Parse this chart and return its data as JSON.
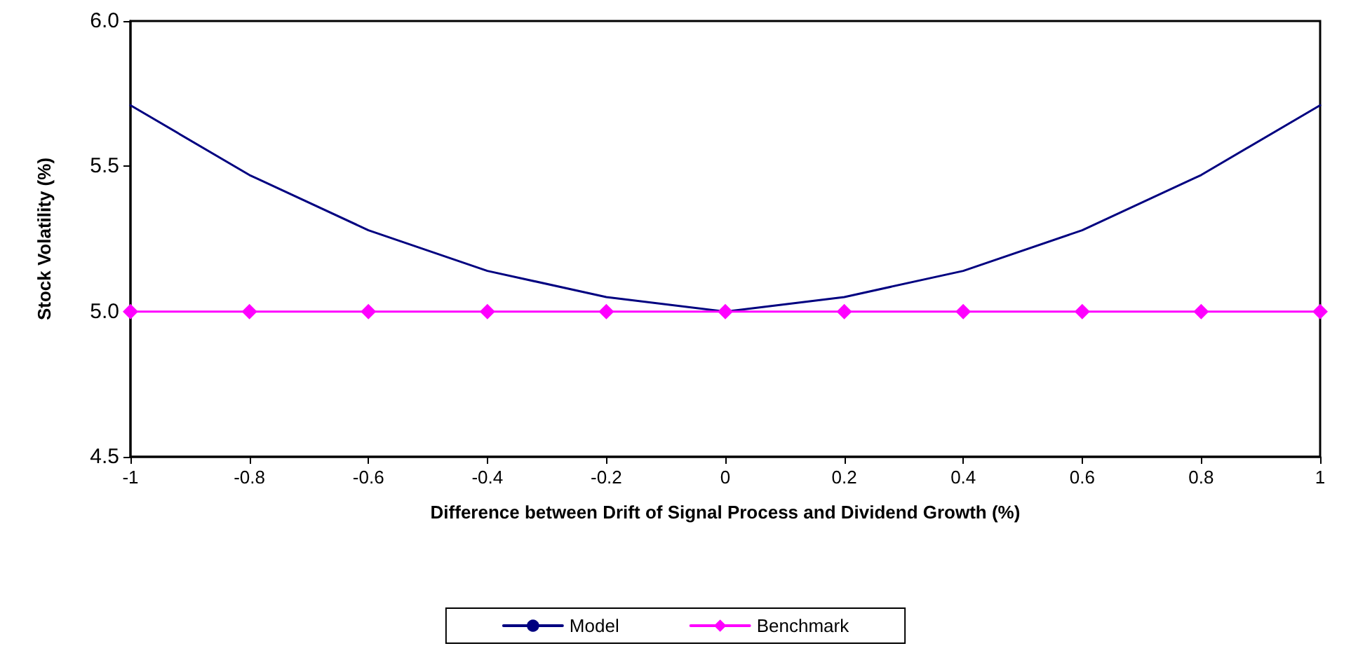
{
  "chart_data": {
    "type": "line",
    "xlabel": "Difference between Drift of Signal Process and Dividend Growth (%)",
    "ylabel": "Stock Volatility (%)",
    "x": [
      -1,
      -0.8,
      -0.6,
      -0.4,
      -0.2,
      0,
      0.2,
      0.4,
      0.6,
      0.8,
      1
    ],
    "series": [
      {
        "name": "Model",
        "color": "#000080",
        "marker": "none",
        "values": [
          5.71,
          5.47,
          5.28,
          5.14,
          5.05,
          5.0,
          5.05,
          5.14,
          5.28,
          5.47,
          5.71
        ]
      },
      {
        "name": "Benchmark",
        "color": "#ff00ff",
        "marker": "diamond",
        "values": [
          5.0,
          5.0,
          5.0,
          5.0,
          5.0,
          5.0,
          5.0,
          5.0,
          5.0,
          5.0,
          5.0
        ]
      }
    ],
    "xlim": [
      -1,
      1
    ],
    "xticks": [
      -1,
      -0.8,
      -0.6,
      -0.4,
      -0.2,
      0,
      0.2,
      0.4,
      0.6,
      0.8,
      1
    ],
    "ylim": [
      4.5,
      6.0
    ],
    "yticks": [
      4.5,
      {
        "value": 5.0,
        "label": "5.0"
      },
      5.5,
      {
        "value": 6.0,
        "label": "6.0"
      }
    ],
    "grid": false,
    "legend": "bottom",
    "line_style": "solid"
  }
}
